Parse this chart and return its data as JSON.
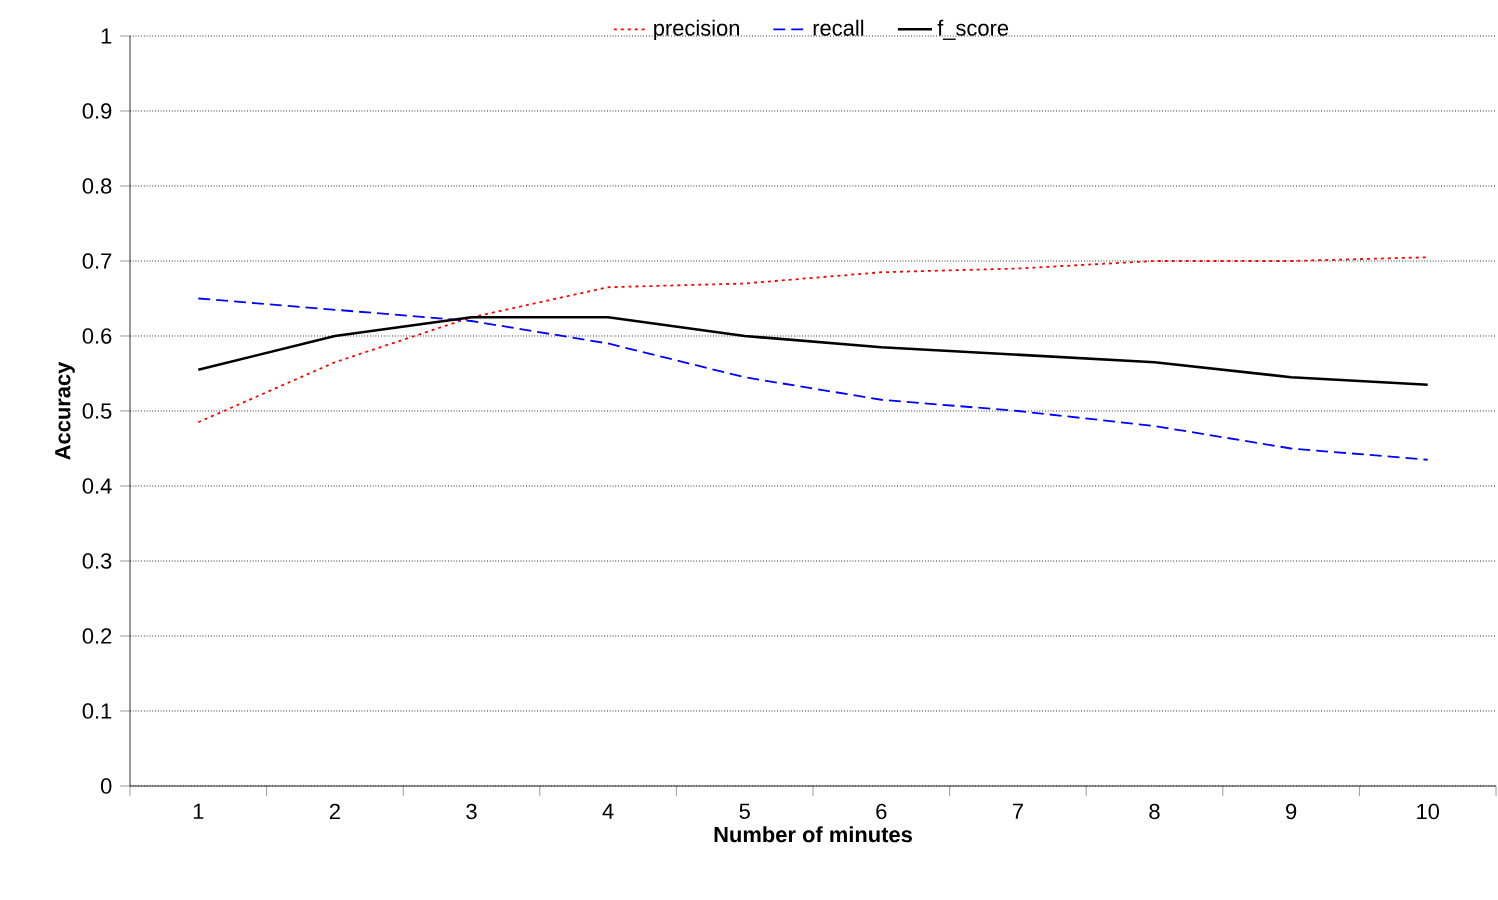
{
  "chart_data": {
    "type": "line",
    "xlabel": "Number of minutes",
    "ylabel": "Accuracy",
    "categories": [
      "1",
      "2",
      "3",
      "4",
      "5",
      "6",
      "7",
      "8",
      "9",
      "10"
    ],
    "series": [
      {
        "name": "precision",
        "color": "#ff0000",
        "line_style": "dotted",
        "values": [
          0.485,
          0.565,
          0.625,
          0.665,
          0.67,
          0.685,
          0.69,
          0.7,
          0.7,
          0.705
        ]
      },
      {
        "name": "recall",
        "color": "#0000ff",
        "line_style": "dashed",
        "values": [
          0.65,
          0.635,
          0.62,
          0.59,
          0.545,
          0.515,
          0.5,
          0.48,
          0.45,
          0.435
        ]
      },
      {
        "name": "f_score",
        "color": "#000000",
        "line_style": "solid",
        "values": [
          0.555,
          0.6,
          0.625,
          0.625,
          0.6,
          0.585,
          0.575,
          0.565,
          0.545,
          0.535
        ]
      }
    ],
    "ylim": [
      0,
      1
    ],
    "yticks": [
      0,
      0.1,
      0.2,
      0.3,
      0.4,
      0.5,
      0.6,
      0.7,
      0.8,
      0.9,
      1
    ],
    "grid": "y",
    "legend": "top",
    "marker": "none"
  }
}
